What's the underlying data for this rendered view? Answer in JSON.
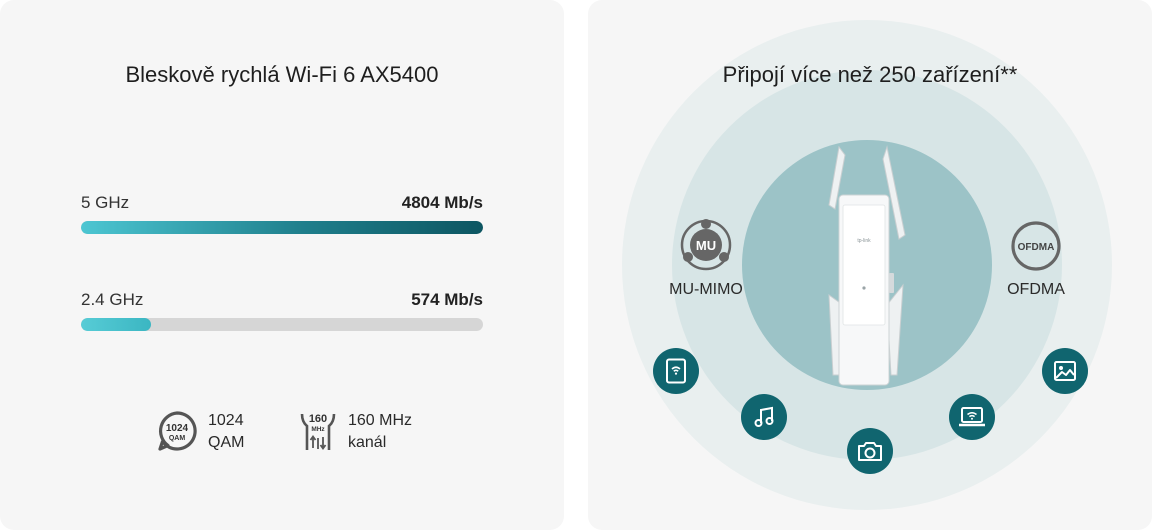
{
  "left": {
    "title": "Bleskově rychlá Wi-Fi 6 AX5400",
    "bands": [
      {
        "label": "5 GHz",
        "value": "4804 Mb/s",
        "fill_fraction": 1.0
      },
      {
        "label": "2.4 GHz",
        "value": "574 Mb/s",
        "fill_fraction": 0.175
      }
    ],
    "features": [
      {
        "icon": "qam-badge-icon",
        "badge_top": "1024",
        "badge_bottom": "QAM",
        "line1": "1024",
        "line2": "QAM"
      },
      {
        "icon": "channel-160-icon",
        "badge_top": "160",
        "badge_bottom": "MHz",
        "line1": "160 MHz",
        "line2": "kanál"
      }
    ]
  },
  "right": {
    "title": "Připojí více než 250 zařízení**",
    "technologies": [
      {
        "icon": "mu-mimo-icon",
        "badge": "MU",
        "label": "MU-MIMO"
      },
      {
        "icon": "ofdma-icon",
        "badge": "OFDMA",
        "label": "OFDMA"
      }
    ],
    "brand_mark": "tp-link",
    "devices": [
      "tablet-icon",
      "music-note-icon",
      "camera-icon",
      "laptop-icon",
      "image-icon"
    ]
  },
  "colors": {
    "accent_dark": "#10656f",
    "accent_light": "#4cc6d2",
    "ring_outer": "#e9efef",
    "ring_middle": "#d7e5e6",
    "ring_inner": "#9cc3c7"
  }
}
